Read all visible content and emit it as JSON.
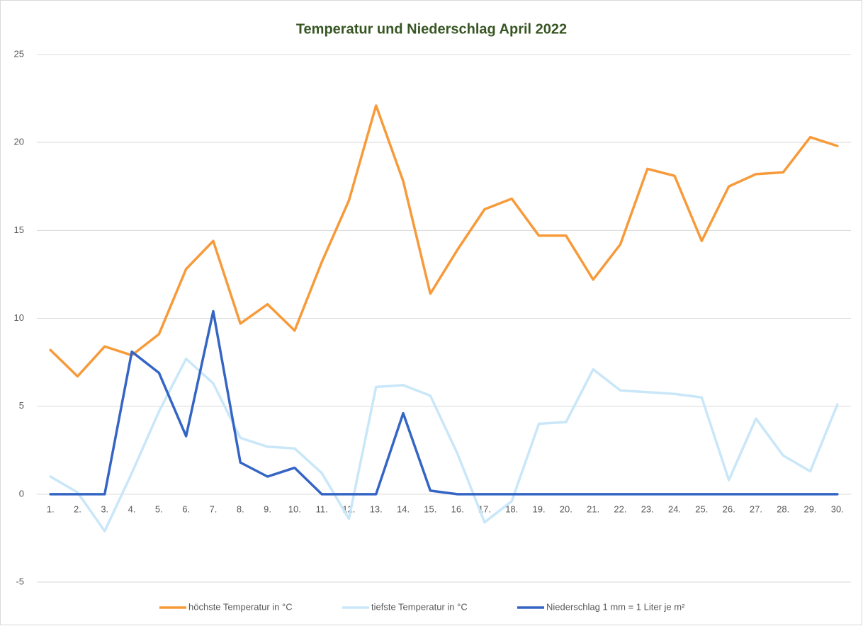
{
  "chart_data": {
    "type": "line",
    "title": "Temperatur und Niederschlag April 2022",
    "categories": [
      "1.",
      "2.",
      "3.",
      "4.",
      "5.",
      "6.",
      "7.",
      "8.",
      "9.",
      "10.",
      "11.",
      "12.",
      "13.",
      "14.",
      "15.",
      "16.",
      "17.",
      "18.",
      "19.",
      "20.",
      "21.",
      "22.",
      "23.",
      "24.",
      "25.",
      "26.",
      "27.",
      "28.",
      "29.",
      "30."
    ],
    "series": [
      {
        "name": "höchste Temperatur in °C",
        "color": "#f79a3a",
        "values": [
          8.2,
          6.7,
          8.4,
          7.9,
          9.1,
          12.8,
          14.4,
          9.7,
          10.8,
          9.3,
          13.2,
          16.7,
          22.1,
          17.8,
          11.4,
          13.9,
          16.2,
          16.8,
          14.7,
          14.7,
          12.2,
          14.2,
          18.5,
          18.1,
          14.4,
          17.5,
          18.2,
          18.3,
          20.3,
          19.8
        ]
      },
      {
        "name": "tiefste Temperatur in °C",
        "color": "#c9e7f8",
        "values": [
          1.0,
          0.1,
          -2.1,
          1.2,
          4.7,
          7.7,
          6.3,
          3.2,
          2.7,
          2.6,
          1.2,
          -1.4,
          6.1,
          6.2,
          5.6,
          2.3,
          -1.6,
          -0.4,
          4.0,
          4.1,
          7.1,
          5.9,
          5.8,
          5.7,
          5.5,
          0.8,
          4.3,
          2.2,
          1.3,
          5.1
        ]
      },
      {
        "name": "Niederschlag 1 mm =  1 Liter je m²",
        "color": "#3565c4",
        "values": [
          0,
          0,
          0,
          8.1,
          6.9,
          3.3,
          10.4,
          1.8,
          1.0,
          1.5,
          0,
          0,
          0,
          4.6,
          0.2,
          0,
          0,
          0,
          0,
          0,
          0,
          0,
          0,
          0,
          0,
          0,
          0,
          0,
          0,
          0
        ]
      }
    ],
    "ylim": [
      -5,
      25
    ],
    "yticks": [
      -5,
      0,
      5,
      10,
      15,
      20,
      25
    ],
    "grid": true,
    "legend": "bottom"
  }
}
